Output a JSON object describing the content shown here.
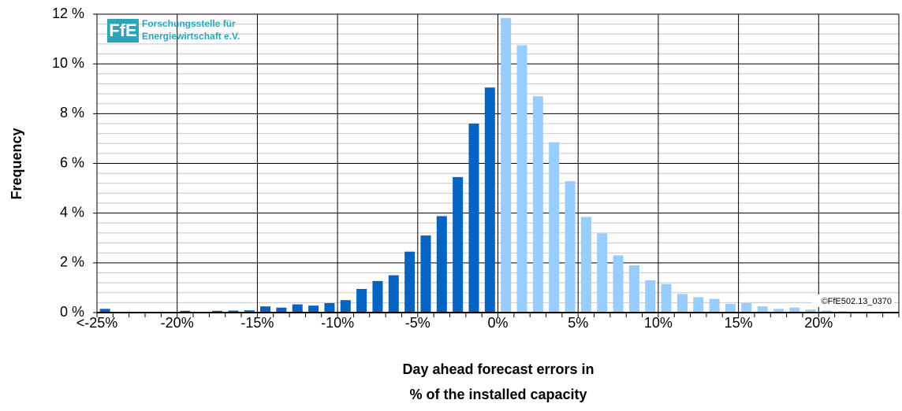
{
  "chart_data": {
    "type": "histogram",
    "y_label": "Frequency",
    "x_label": [
      "Day ahead forecast errors in",
      "% of the installed capacity"
    ],
    "logo": {
      "mark": "FfE",
      "lines": [
        "Forschungsstelle für",
        "Energiewirtschaft e.V."
      ]
    },
    "copyright": "©FfE502.13_0370",
    "bins": [
      -25,
      -24,
      -23,
      -22,
      -21,
      -20,
      -19,
      -18,
      -17,
      -16,
      -15,
      -14,
      -13,
      -12,
      -11,
      -10,
      -9,
      -8,
      -7,
      -6,
      -5,
      -4,
      -3,
      -2,
      -1,
      0,
      1,
      2,
      3,
      4,
      5,
      6,
      7,
      8,
      9,
      10,
      11,
      12,
      13,
      14,
      15,
      16,
      17,
      18,
      19,
      20,
      21,
      22,
      23,
      24,
      25
    ],
    "values": [
      0.15,
      0,
      0,
      0,
      0,
      0.07,
      0.03,
      0.07,
      0.08,
      0.09,
      0.25,
      0.2,
      0.33,
      0.28,
      0.38,
      0.5,
      0.95,
      1.27,
      1.5,
      2.45,
      3.1,
      3.88,
      5.45,
      7.6,
      9.05,
      11.85,
      10.75,
      8.7,
      6.85,
      5.28,
      3.85,
      3.18,
      2.3,
      1.9,
      1.3,
      1.15,
      0.75,
      0.62,
      0.55,
      0.35,
      0.38,
      0.25,
      0.15,
      0.2,
      0.12,
      0.08,
      0.05,
      0.02,
      0,
      0
    ],
    "colors": {
      "negative": "#0563c1",
      "positive": "#99ccff"
    },
    "xlim": [
      -25,
      25
    ],
    "xticks": [
      {
        "value": -25,
        "label": "<-25%"
      },
      {
        "value": -20,
        "label": "-20%"
      },
      {
        "value": -15,
        "label": "-15%"
      },
      {
        "value": -10,
        "label": "-10%"
      },
      {
        "value": -5,
        "label": "-5%"
      },
      {
        "value": 0,
        "label": "0%"
      },
      {
        "value": 5,
        "label": "5%"
      },
      {
        "value": 10,
        "label": "10%"
      },
      {
        "value": 15,
        "label": "15%"
      },
      {
        "value": 20,
        "label": "20%"
      }
    ],
    "ylim": [
      0,
      12
    ],
    "yticks": [
      {
        "value": 0,
        "label": "0 %"
      },
      {
        "value": 2,
        "label": "2 %"
      },
      {
        "value": 4,
        "label": "4 %"
      },
      {
        "value": 6,
        "label": "6 %"
      },
      {
        "value": 8,
        "label": "8 %"
      },
      {
        "value": 10,
        "label": "10 %"
      },
      {
        "value": 12,
        "label": "12 %"
      }
    ],
    "y_minor_ticks": [
      0.4,
      0.8,
      1.2,
      1.6,
      2.4,
      2.8,
      3.2,
      3.6,
      4.4,
      4.8,
      5.2,
      5.6,
      6.4,
      6.8,
      7.2,
      7.6,
      8.4,
      8.8,
      9.2,
      9.6,
      10.4,
      10.8,
      11.2,
      11.6
    ],
    "grid": true
  }
}
